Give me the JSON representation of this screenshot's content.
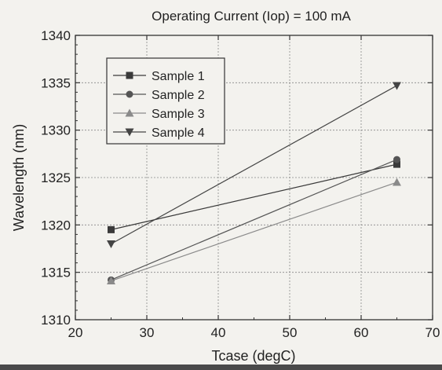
{
  "chart_data": {
    "type": "line",
    "title": "Operating Current (Iop) = 100 mA",
    "xlabel": "Tcase (degC)",
    "ylabel": "Wavelength (nm)",
    "xlim": [
      20,
      70
    ],
    "ylim": [
      1310,
      1340
    ],
    "xticks": [
      "20",
      "30",
      "40",
      "50",
      "60",
      "70"
    ],
    "yticks": [
      "1310",
      "1315",
      "1320",
      "1325",
      "1330",
      "1335",
      "1340"
    ],
    "grid": true,
    "legend_position": "top-left",
    "series": [
      {
        "name": "Sample 1",
        "marker": "square",
        "color": "#3a3a3a",
        "x": [
          25,
          65
        ],
        "y": [
          1319.5,
          1326.4
        ]
      },
      {
        "name": "Sample 2",
        "marker": "circle",
        "color": "#555555",
        "x": [
          25,
          65
        ],
        "y": [
          1314.2,
          1326.9
        ]
      },
      {
        "name": "Sample 3",
        "marker": "triangle-up",
        "color": "#8a8a8a",
        "x": [
          25,
          65
        ],
        "y": [
          1314.1,
          1324.5
        ]
      },
      {
        "name": "Sample 4",
        "marker": "triangle-down",
        "color": "#444444",
        "x": [
          25,
          65
        ],
        "y": [
          1318.0,
          1334.7
        ]
      }
    ]
  }
}
